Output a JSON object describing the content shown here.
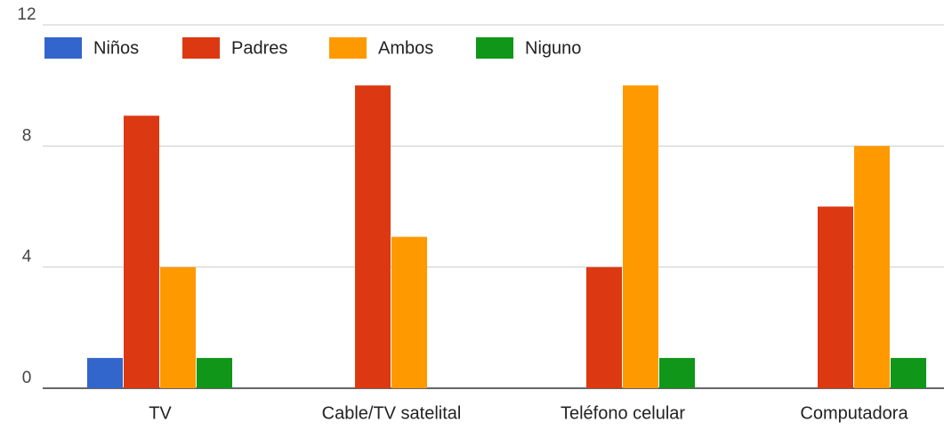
{
  "chart_data": {
    "type": "bar",
    "categories": [
      "TV",
      "Cable/TV satelital",
      "Teléfono celular",
      "Computadora"
    ],
    "series": [
      {
        "name": "Niños",
        "color": "#3366cc",
        "values": [
          1,
          0,
          0,
          0
        ]
      },
      {
        "name": "Padres",
        "color": "#dc3912",
        "values": [
          9,
          10,
          4,
          6
        ]
      },
      {
        "name": "Ambos",
        "color": "#ff9900",
        "values": [
          4,
          5,
          10,
          8
        ]
      },
      {
        "name": "Niguno",
        "color": "#109618",
        "values": [
          1,
          0,
          1,
          1
        ]
      }
    ],
    "ylim": [
      0,
      12
    ],
    "yticks": [
      0,
      4,
      8,
      12
    ],
    "grid": true,
    "legend": "top"
  }
}
